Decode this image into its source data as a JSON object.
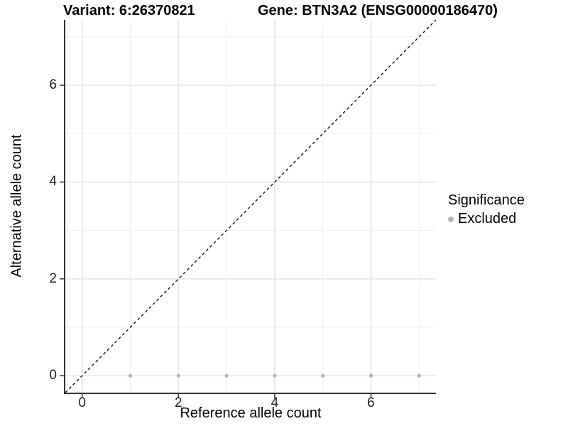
{
  "chart_data": {
    "type": "scatter",
    "titles": {
      "left": "Variant: 6:26370821",
      "right": "Gene: BTN3A2 (ENSG00000186470)"
    },
    "xlabel": "Reference allele count",
    "ylabel": "Alternative allele count",
    "xlim": [
      -0.35,
      7.35
    ],
    "ylim": [
      -0.35,
      7.35
    ],
    "x_ticks": [
      0,
      2,
      4,
      6
    ],
    "y_ticks": [
      0,
      2,
      4,
      6
    ],
    "grid_major": [
      0,
      2,
      4,
      6
    ],
    "grid_minor": [
      1,
      3,
      5,
      7
    ],
    "identity_line": {
      "slope": 1,
      "intercept": 0,
      "style": "dashed",
      "color": "#111111"
    },
    "series": [
      {
        "name": "Excluded",
        "color": "#b3b3b3",
        "points": [
          [
            1,
            0
          ],
          [
            2,
            0
          ],
          [
            3,
            0
          ],
          [
            4,
            0
          ],
          [
            5,
            0
          ],
          [
            6,
            0
          ],
          [
            7,
            0
          ]
        ]
      }
    ],
    "legend": {
      "title": "Significance",
      "position": "right",
      "items": [
        {
          "label": "Excluded",
          "color": "#b3b3b3"
        }
      ]
    }
  },
  "colors": {
    "background": "#ffffff",
    "axis_line": "#333333",
    "tick_mark": "#333333",
    "grid_major": "#e7e7e7",
    "grid_minor": "#f0f0f0",
    "tick_text": "#1f1f1f",
    "point": "#b3b3b3"
  }
}
